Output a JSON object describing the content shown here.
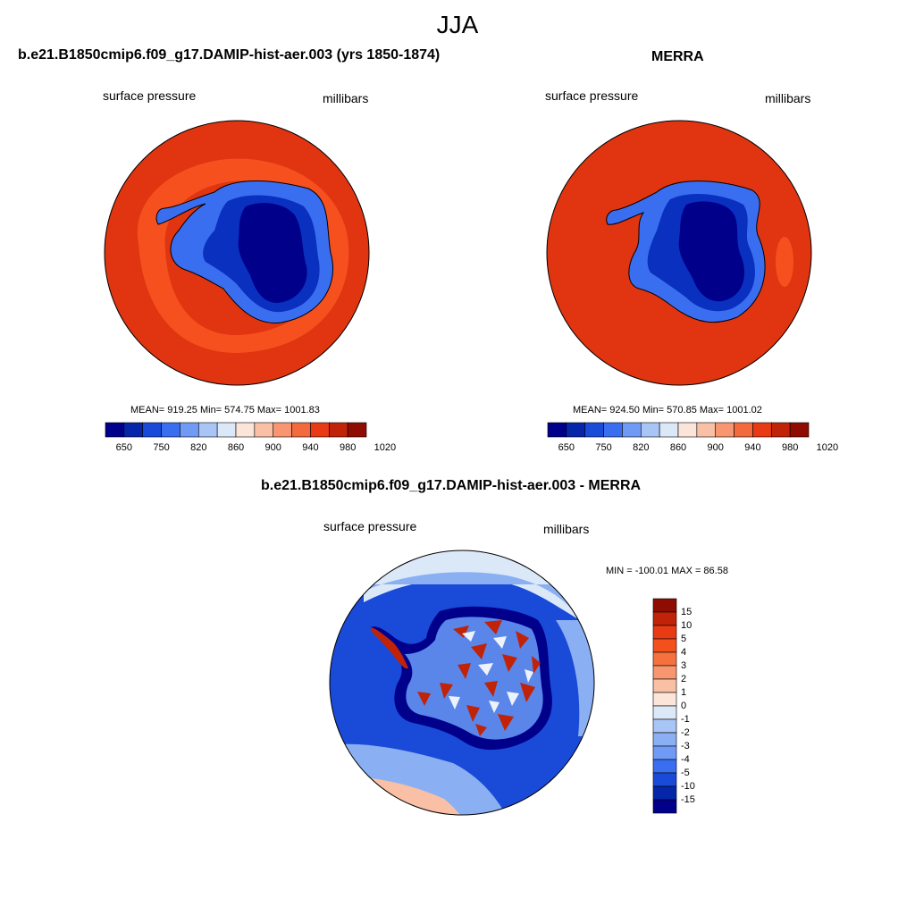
{
  "page": {
    "title": "JJA"
  },
  "panels": {
    "model": {
      "title": "b.e21.B1850cmip6.f09_g17.DAMIP-hist-aer.003 (yrs 1850-1874)",
      "left_label": "surface pressure",
      "right_label": "millibars",
      "stats": "MEAN= 919.25  Min= 574.75  Max= 1001.83"
    },
    "obs": {
      "title": "MERRA",
      "left_label": "surface pressure",
      "right_label": "millibars",
      "stats": "MEAN= 924.50  Min= 570.85  Max= 1001.02"
    },
    "diff": {
      "title": "b.e21.B1850cmip6.f09_g17.DAMIP-hist-aer.003 - MERRA",
      "left_label": "surface pressure",
      "right_label": "millibars",
      "stats": "MIN = -100.01 MAX =  86.58"
    }
  },
  "colorbars": {
    "horizontal": {
      "ticks": [
        "650",
        "750",
        "820",
        "860",
        "900",
        "940",
        "980",
        "1020"
      ],
      "colors": [
        "#00008a",
        "#0526a8",
        "#1a4ad8",
        "#3a6ef0",
        "#6f9af5",
        "#a8c5f5",
        "#dbe8f8",
        "#fbe4d8",
        "#f9c0a5",
        "#f79670",
        "#f36a3f",
        "#e83a15",
        "#c02308",
        "#8e0c02"
      ]
    },
    "vertical": {
      "ticks": [
        "15",
        "10",
        "5",
        "4",
        "3",
        "2",
        "1",
        "0",
        "-1",
        "-2",
        "-3",
        "-4",
        "-5",
        "-10",
        "-15"
      ],
      "colors": [
        "#8e0c02",
        "#c02308",
        "#e83a15",
        "#f3501e",
        "#f5723f",
        "#f79670",
        "#f9c0a5",
        "#fbe4d8",
        "#dbe8f8",
        "#a8c5f5",
        "#8ab0f3",
        "#6f9af5",
        "#3a6ef0",
        "#1a4ad8",
        "#0526a8",
        "#00008a"
      ]
    }
  },
  "map_colors": {
    "ocean_high": "#e03510",
    "ocean_mid": "#f5501e",
    "ice_dark": "#00008a",
    "ice_mid": "#0a30c0",
    "ice_light": "#3a6ef0",
    "diff_ocean": "#1a4ad8",
    "diff_light": "#8ab0f3",
    "diff_pale": "#dbe8f8",
    "diff_warm": "#f9c0a5"
  }
}
